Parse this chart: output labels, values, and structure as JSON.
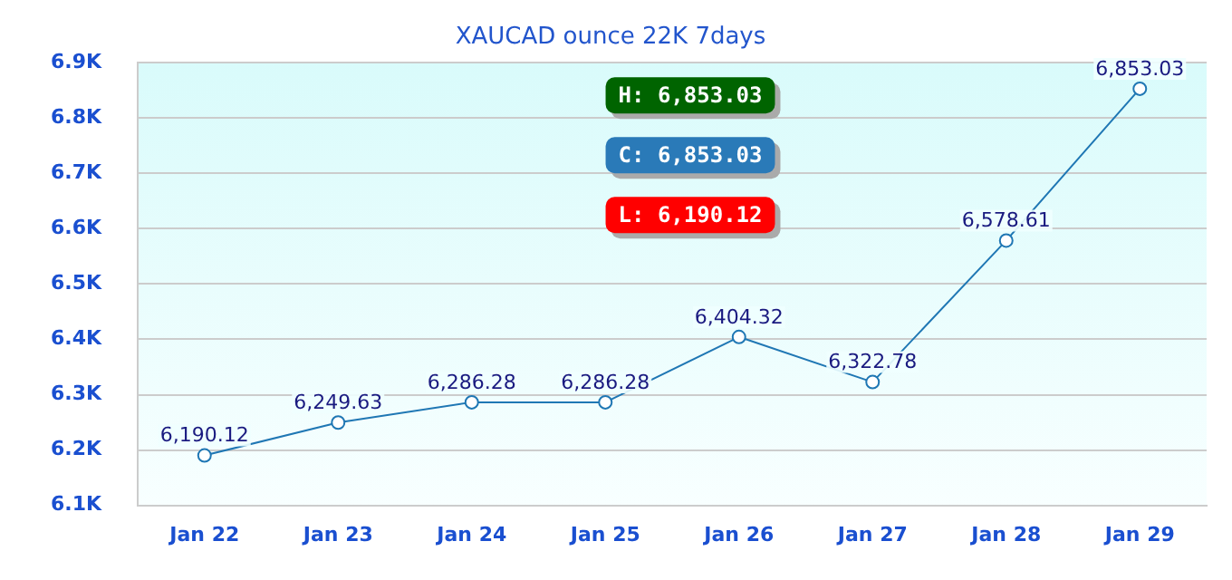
{
  "chart_data": {
    "type": "line",
    "title": "XAUCAD ounce 22K 7days",
    "categories": [
      "Jan 22",
      "Jan 23",
      "Jan 24",
      "Jan 25",
      "Jan 26",
      "Jan 27",
      "Jan 28",
      "Jan 29"
    ],
    "series": [
      {
        "color": "#1f77b4",
        "values": [
          6190.12,
          6249.63,
          6286.28,
          6286.28,
          6404.32,
          6322.78,
          6578.61,
          6853.03
        ],
        "value_labels": [
          "6,190.12",
          "6,249.63",
          "6,286.28",
          "6,286.28",
          "6,404.32",
          "6,322.78",
          "6,578.61",
          "6,853.03"
        ]
      }
    ],
    "ylim": [
      6100,
      6900
    ],
    "yticks": [
      {
        "value": 6100,
        "label": "6.1K"
      },
      {
        "value": 6200,
        "label": "6.2K"
      },
      {
        "value": 6300,
        "label": "6.3K"
      },
      {
        "value": 6400,
        "label": "6.4K"
      },
      {
        "value": 6500,
        "label": "6.5K"
      },
      {
        "value": 6600,
        "label": "6.6K"
      },
      {
        "value": 6700,
        "label": "6.7K"
      },
      {
        "value": 6800,
        "label": "6.8K"
      },
      {
        "value": 6900,
        "label": "6.9K"
      }
    ],
    "grid": "y",
    "legend": false,
    "marker": "circle",
    "line_style": "solid",
    "annotations": [
      "H: 6,853.03",
      "C: 6,853.03",
      "L: 6,190.12"
    ]
  }
}
